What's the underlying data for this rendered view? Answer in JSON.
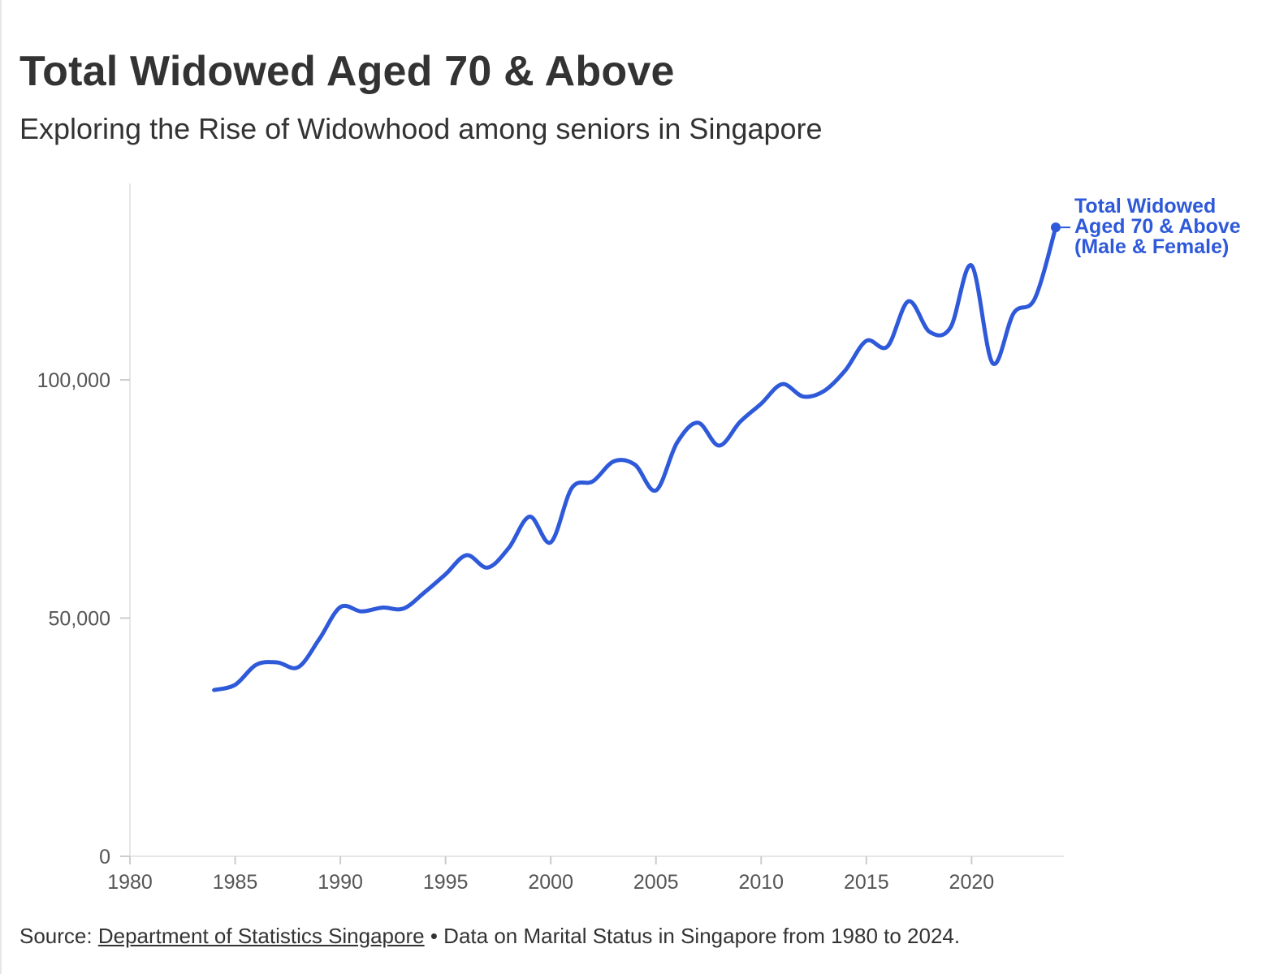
{
  "title": "Total Widowed Aged 70 & Above",
  "subtitle": "Exploring the Rise of Widowhood among seniors in Singapore",
  "source": {
    "prefix": "Source:",
    "link_text": "Department of Statistics Singapore",
    "suffix": "• Data on Marital Status in Singapore from 1980 to 2024."
  },
  "colors": {
    "line": "#2e59d9",
    "axis": "#e6e6e6",
    "text": "#333333"
  },
  "chart_data": {
    "type": "line",
    "title": "Total Widowed Aged 70 & Above",
    "subtitle": "Exploring the Rise of Widowhood among seniors in Singapore",
    "xlabel": "",
    "ylabel": "",
    "xlim": [
      1980,
      2024
    ],
    "ylim": [
      0,
      140000
    ],
    "x_ticks": [
      1980,
      1985,
      1990,
      1995,
      2000,
      2005,
      2010,
      2015,
      2020
    ],
    "x_tick_labels": [
      "1980",
      "1985",
      "1990",
      "1995",
      "2000",
      "2005",
      "2010",
      "2015",
      "2020"
    ],
    "y_ticks": [
      0,
      50000,
      100000
    ],
    "y_tick_labels": [
      "0",
      "50,000",
      "100,000"
    ],
    "grid": false,
    "series": [
      {
        "name": "Total Widowed Aged 70 & Above (Male & Female)",
        "label_lines": [
          "Total Widowed",
          "Aged 70 & Above",
          "(Male & Female)"
        ],
        "x": [
          1984,
          1985,
          1986,
          1987,
          1988,
          1989,
          1990,
          1991,
          1992,
          1993,
          1994,
          1995,
          1996,
          1997,
          1998,
          1999,
          2000,
          2001,
          2002,
          2003,
          2004,
          2005,
          2006,
          2007,
          2008,
          2009,
          2010,
          2011,
          2012,
          2013,
          2014,
          2015,
          2016,
          2017,
          2018,
          2019,
          2020,
          2021,
          2022,
          2023,
          2024
        ],
        "values": [
          34900,
          36000,
          40200,
          40700,
          39700,
          45600,
          52300,
          51400,
          52200,
          52000,
          55400,
          59200,
          63200,
          60600,
          64700,
          71300,
          65900,
          77300,
          78700,
          82900,
          82200,
          76800,
          86800,
          91000,
          86200,
          91200,
          95000,
          99100,
          96500,
          97700,
          102000,
          108200,
          107000,
          116500,
          110100,
          111000,
          124000,
          103500,
          114000,
          117000,
          132000
        ]
      }
    ]
  }
}
